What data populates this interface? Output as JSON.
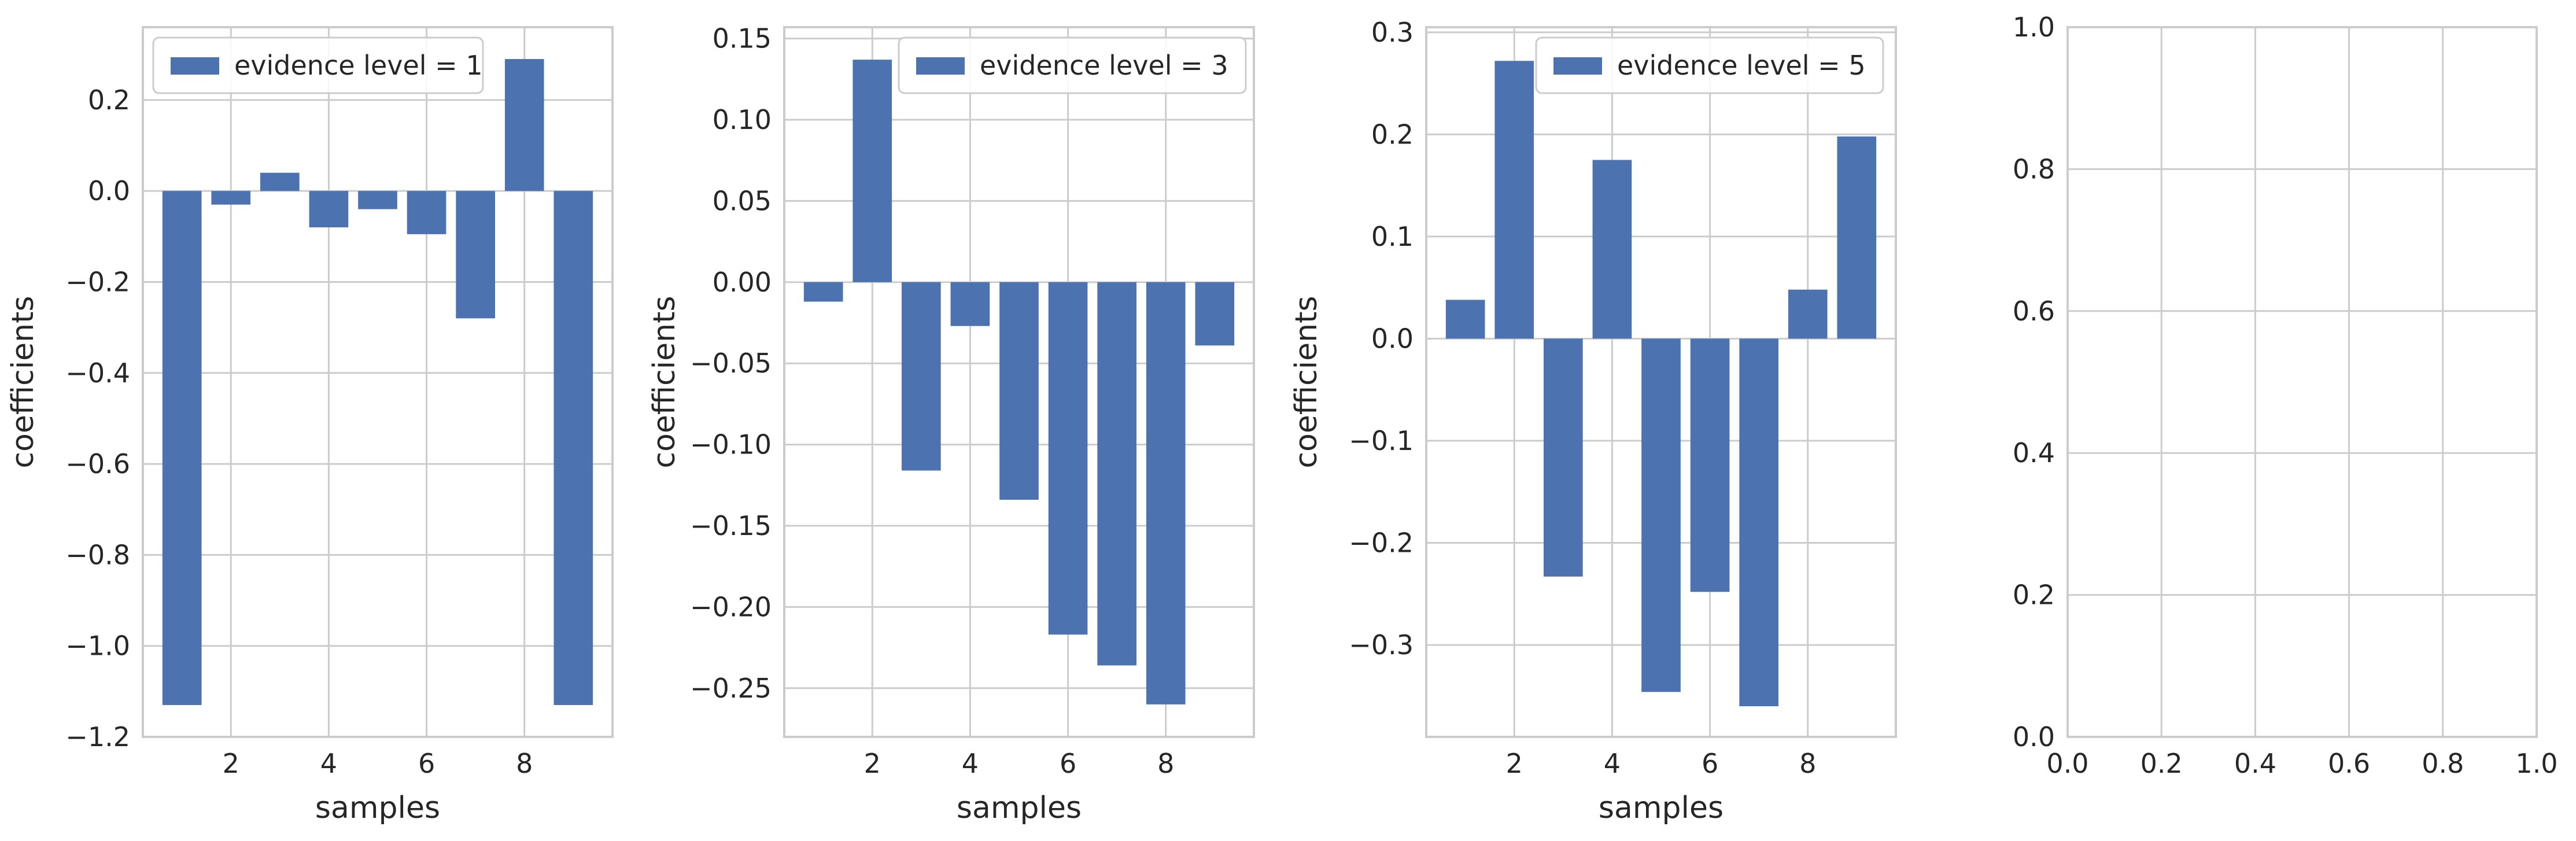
{
  "chart_data": [
    {
      "type": "bar",
      "x": [
        1,
        2,
        3,
        4,
        5,
        6,
        7,
        8,
        9
      ],
      "series": [
        {
          "name": "evidence level = 1",
          "values": [
            -1.13,
            -0.03,
            0.04,
            -0.08,
            -0.04,
            -0.095,
            -0.28,
            0.29,
            -1.13
          ]
        }
      ],
      "xlabel": "samples",
      "ylabel": "coefficients",
      "xlim": [
        0.2,
        9.8
      ],
      "ylim": [
        -1.2,
        0.36
      ],
      "xticks": [
        2,
        4,
        6,
        8
      ],
      "xtick_labels": [
        "2",
        "4",
        "6",
        "8"
      ],
      "yticks": [
        -1.2,
        -1.0,
        -0.8,
        -0.6,
        -0.4,
        -0.2,
        0.0,
        0.2
      ],
      "ytick_labels": [
        "−1.2",
        "−1.0",
        "−0.8",
        "−0.6",
        "−0.4",
        "−0.2",
        "0.0",
        "0.2"
      ],
      "legend": "top-left",
      "grid": true,
      "color": "#4c72b0"
    },
    {
      "type": "bar",
      "x": [
        1,
        2,
        3,
        4,
        5,
        6,
        7,
        8,
        9
      ],
      "series": [
        {
          "name": "evidence level = 3",
          "values": [
            -0.012,
            0.137,
            -0.116,
            -0.027,
            -0.134,
            -0.217,
            -0.236,
            -0.26,
            -0.039
          ]
        }
      ],
      "xlabel": "samples",
      "ylabel": "coefficients",
      "xlim": [
        0.2,
        9.8
      ],
      "ylim": [
        -0.28,
        0.157
      ],
      "xticks": [
        2,
        4,
        6,
        8
      ],
      "xtick_labels": [
        "2",
        "4",
        "6",
        "8"
      ],
      "yticks": [
        -0.25,
        -0.2,
        -0.15,
        -0.1,
        -0.05,
        0.0,
        0.05,
        0.1,
        0.15
      ],
      "ytick_labels": [
        "−0.25",
        "−0.20",
        "−0.15",
        "−0.10",
        "−0.05",
        "0.00",
        "0.05",
        "0.10",
        "0.15"
      ],
      "legend": "top-right",
      "grid": true,
      "color": "#4c72b0"
    },
    {
      "type": "bar",
      "x": [
        1,
        2,
        3,
        4,
        5,
        6,
        7,
        8,
        9
      ],
      "series": [
        {
          "name": "evidence level = 5",
          "values": [
            0.038,
            0.272,
            -0.233,
            0.175,
            -0.346,
            -0.248,
            -0.36,
            0.048,
            0.198
          ]
        }
      ],
      "xlabel": "samples",
      "ylabel": "coefficients",
      "xlim": [
        0.2,
        9.8
      ],
      "ylim": [
        -0.39,
        0.305
      ],
      "xticks": [
        2,
        4,
        6,
        8
      ],
      "xtick_labels": [
        "2",
        "4",
        "6",
        "8"
      ],
      "yticks": [
        -0.3,
        -0.2,
        -0.1,
        0.0,
        0.1,
        0.2,
        0.3
      ],
      "ytick_labels": [
        "−0.3",
        "−0.2",
        "−0.1",
        "0.0",
        "0.1",
        "0.2",
        "0.3"
      ],
      "legend": "top-right",
      "grid": true,
      "color": "#4c72b0"
    },
    {
      "type": "bar",
      "x": [],
      "series": [],
      "xlabel": "",
      "ylabel": "",
      "xlim": [
        0,
        1
      ],
      "ylim": [
        0,
        1
      ],
      "xticks": [
        0,
        0.2,
        0.4,
        0.6,
        0.8,
        1.0
      ],
      "xtick_labels": [
        "0.0",
        "0.2",
        "0.4",
        "0.6",
        "0.8",
        "1.0"
      ],
      "yticks": [
        0,
        0.2,
        0.4,
        0.6,
        0.8,
        1.0
      ],
      "ytick_labels": [
        "0.0",
        "0.2",
        "0.4",
        "0.6",
        "0.8",
        "1.0"
      ],
      "legend": "none",
      "grid": true,
      "color": "#4c72b0"
    }
  ],
  "colors": {
    "bar": "#4c72b0",
    "grid": "#cccccc",
    "spine": "#cccccc",
    "text": "#262626"
  }
}
